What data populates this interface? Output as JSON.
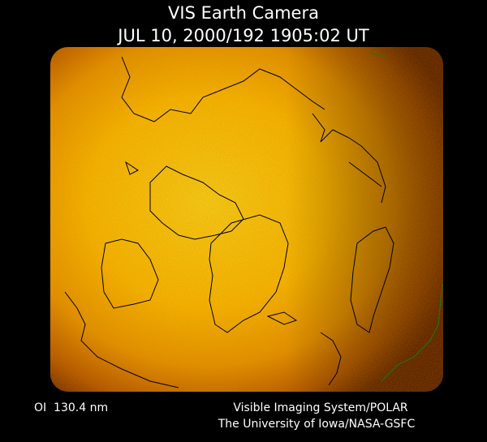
{
  "header": {
    "title": "VIS Earth Camera",
    "timestamp": "JUL 10, 2000/192 1905:02 UT"
  },
  "footer": {
    "filter": "OI  130.4 nm",
    "instrument": "Visible Imaging System/POLAR",
    "institution": "The University of Iowa/NASA-GSFC"
  }
}
